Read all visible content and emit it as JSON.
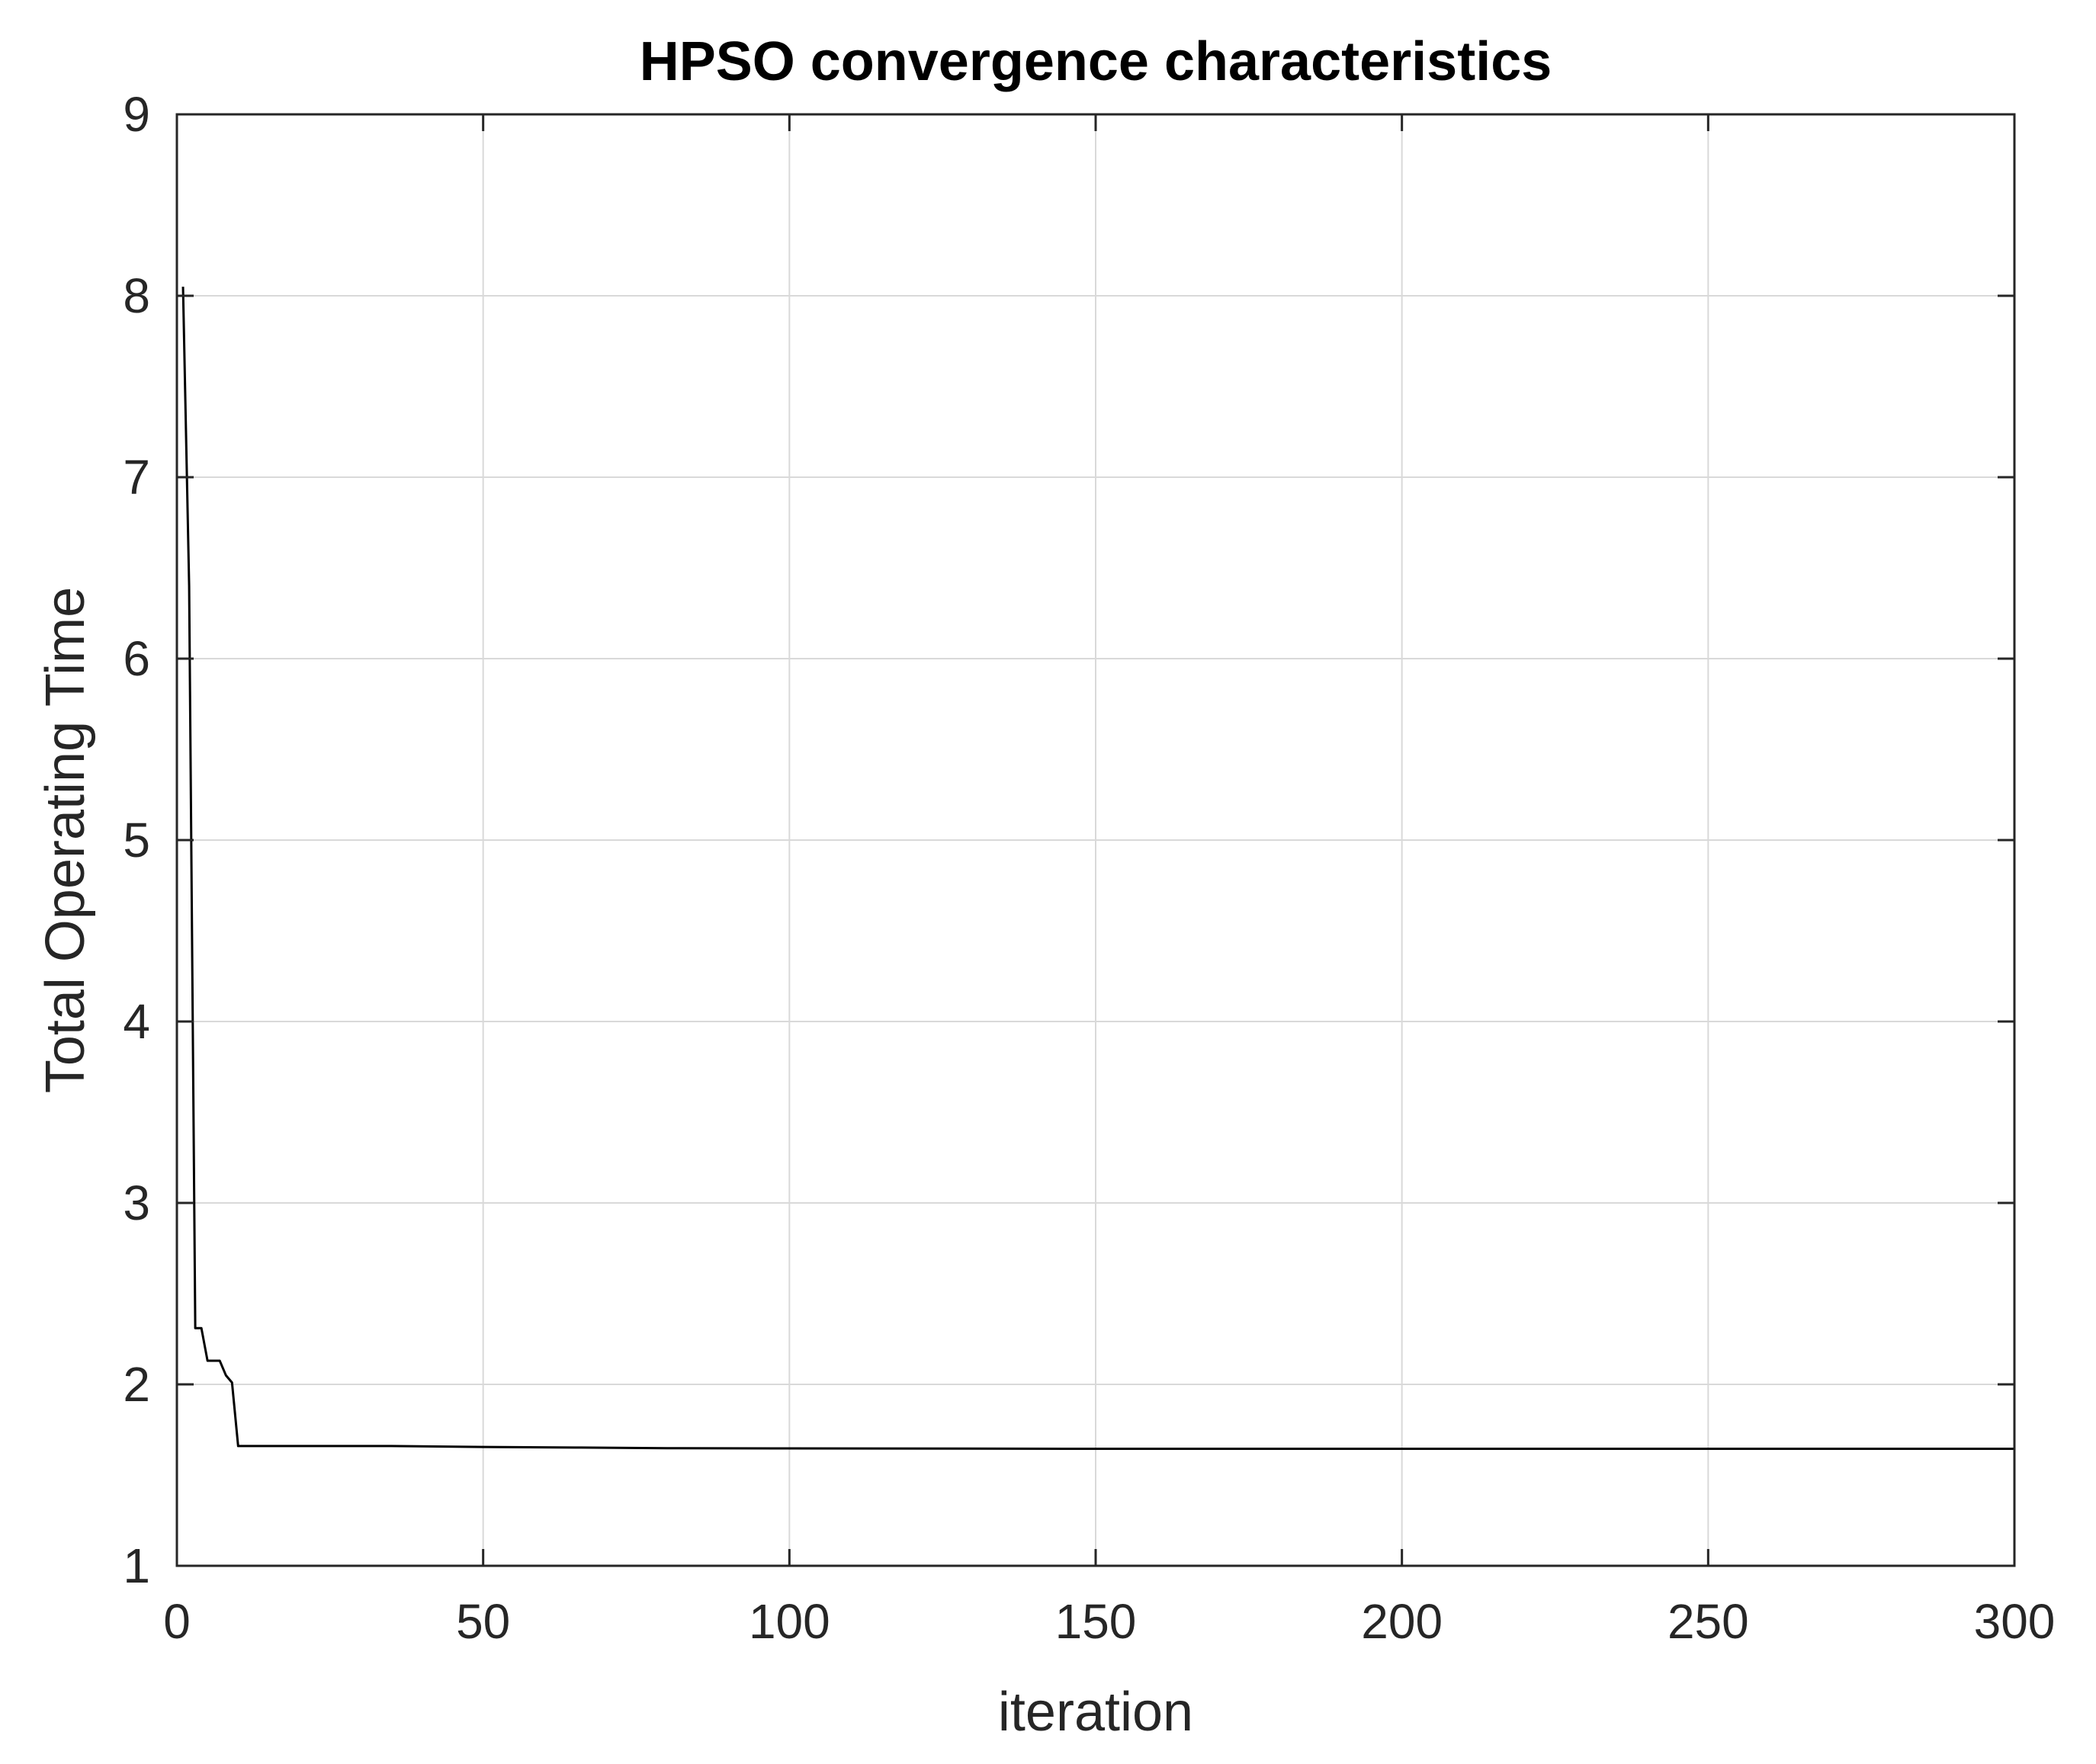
{
  "chart_data": {
    "type": "line",
    "title": "HPSO convergence characteristics",
    "xlabel": "iteration",
    "ylabel": "Total Operating Time",
    "xlim": [
      0,
      300
    ],
    "ylim": [
      1,
      9
    ],
    "xticks": [
      0,
      50,
      100,
      150,
      200,
      250,
      300
    ],
    "yticks": [
      1,
      2,
      3,
      4,
      5,
      6,
      7,
      8,
      9
    ],
    "grid": true,
    "legend": null,
    "series": [
      {
        "color": "#000000",
        "x": [
          1,
          2,
          3,
          4,
          5,
          6,
          7,
          8,
          9,
          10,
          11,
          20,
          35,
          50,
          65,
          80,
          100,
          150,
          200,
          250,
          300
        ],
        "y": [
          8.05,
          6.4,
          2.31,
          2.31,
          2.13,
          2.13,
          2.13,
          2.05,
          2.01,
          1.66,
          1.66,
          1.66,
          1.66,
          1.655,
          1.652,
          1.648,
          1.647,
          1.645,
          1.645,
          1.645,
          1.645
        ]
      }
    ]
  },
  "colors": {
    "background": "#ffffff",
    "axes": "#262626",
    "grid": "#d9d9d9",
    "line": "#000000"
  }
}
